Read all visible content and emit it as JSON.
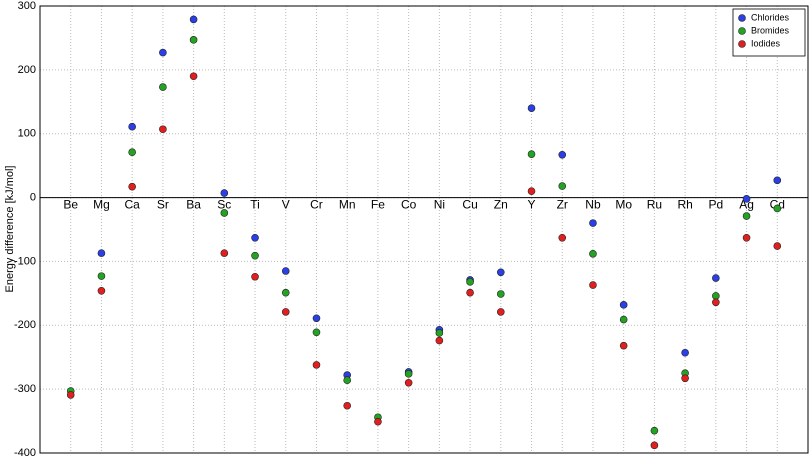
{
  "chart_data": {
    "type": "scatter",
    "y_label": "Energy difference [kJ/mol]",
    "categories": [
      "Be",
      "Mg",
      "Ca",
      "Sr",
      "Ba",
      "Sc",
      "Ti",
      "V",
      "Cr",
      "Mn",
      "Fe",
      "Co",
      "Ni",
      "Cu",
      "Zn",
      "Y",
      "Zr",
      "Nb",
      "Mo",
      "Ru",
      "Rh",
      "Pd",
      "Ag",
      "Cd"
    ],
    "series": [
      {
        "name": "Chlorides",
        "color": "#2a3fe6",
        "values": [
          null,
          -87,
          111,
          227,
          279,
          7,
          -63,
          -115,
          -189,
          -278,
          null,
          -273,
          -207,
          -129,
          -117,
          140,
          67,
          -40,
          -168,
          null,
          -243,
          -126,
          -2,
          27
        ]
      },
      {
        "name": "Bromides",
        "color": "#22a322",
        "values": [
          -303,
          -123,
          71,
          173,
          247,
          -24,
          -91,
          -149,
          -211,
          -286,
          -344,
          -276,
          -212,
          -132,
          -151,
          68,
          18,
          -88,
          -191,
          -365,
          -275,
          -154,
          -29,
          -17
        ]
      },
      {
        "name": "Iodides",
        "color": "#e21f1f",
        "values": [
          -309,
          -146,
          17,
          107,
          190,
          -87,
          -124,
          -179,
          -262,
          -326,
          -351,
          -290,
          -224,
          -149,
          -179,
          10,
          -63,
          -137,
          -232,
          -388,
          -283,
          -164,
          -63,
          -76
        ]
      }
    ],
    "ylim": [
      -400,
      300
    ],
    "yticks": [
      -400,
      -300,
      -200,
      -100,
      0,
      100,
      200,
      300
    ],
    "grid": true,
    "legend": "upper-right"
  }
}
